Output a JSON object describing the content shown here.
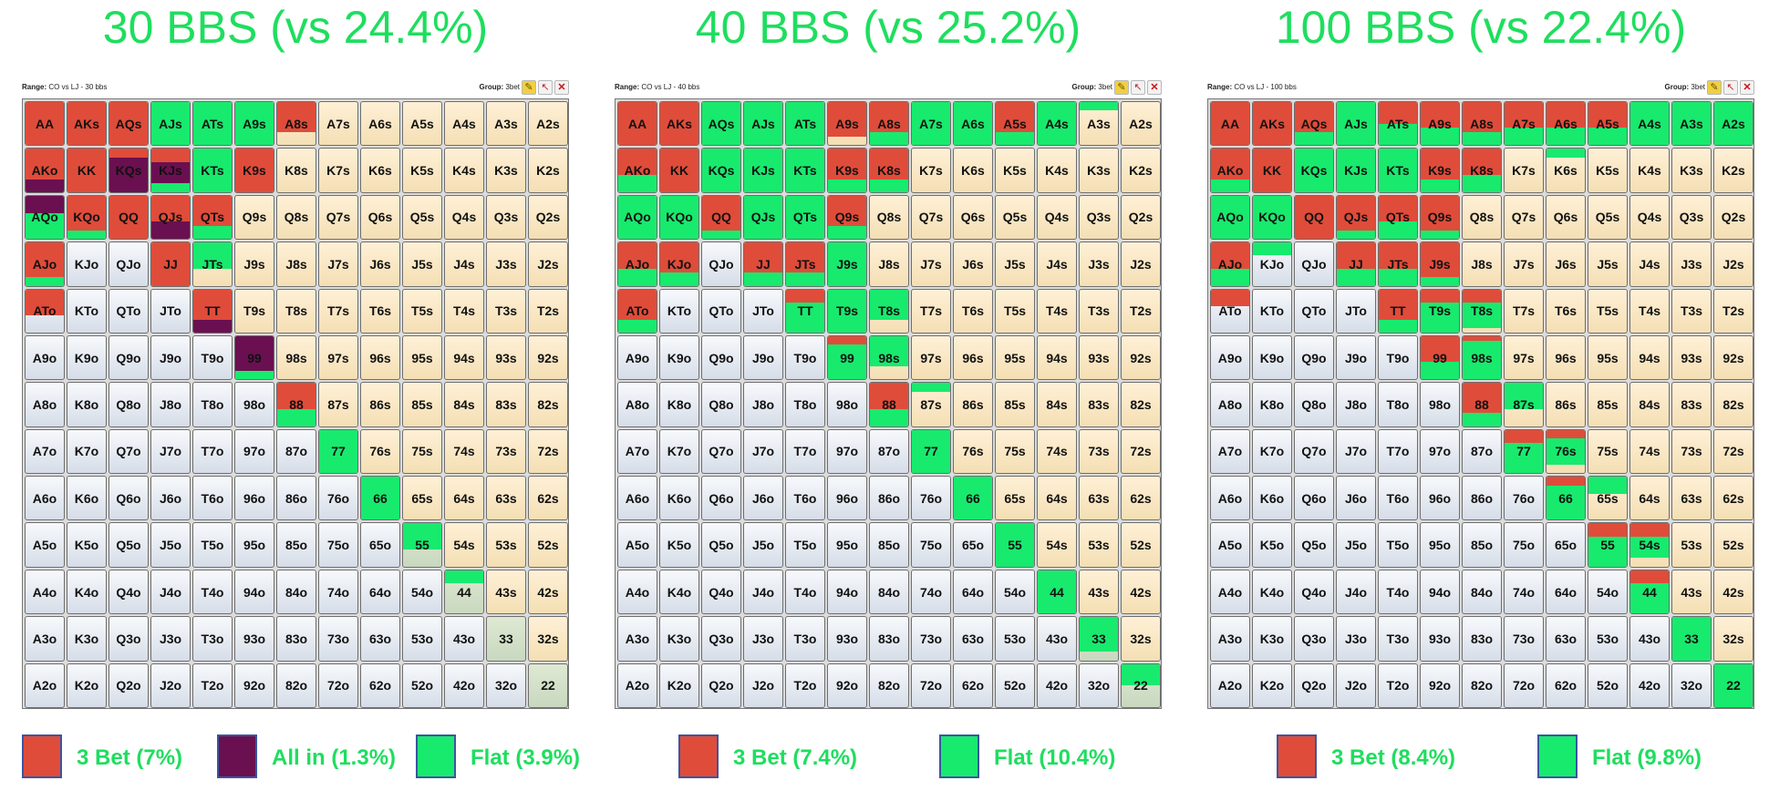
{
  "colors": {
    "title": "#1ede5e",
    "three_bet": "#e04c3a",
    "all_in": "#6a1050",
    "flat": "#18ea6e",
    "suited_bg": "#f4dfb4",
    "offsuit_bg": "#dde3ec",
    "pair_bg": "#c8d8bf"
  },
  "ranks": [
    "A",
    "K",
    "Q",
    "J",
    "T",
    "9",
    "8",
    "7",
    "6",
    "5",
    "4",
    "3",
    "2"
  ],
  "panels": [
    {
      "title": "30 BBS (vs 24.4%)",
      "window": {
        "range_key": "Range:",
        "range_value": "CO vs LJ - 30 bbs",
        "group_key": "Group:",
        "group_value": "3bet"
      },
      "legend": [
        {
          "label": "3 Bet (7%)",
          "color": "#e04c3a"
        },
        {
          "label": "All in (1.3%)",
          "color": "#6a1050"
        },
        {
          "label": "Flat (3.9%)",
          "color": "#18ea6e"
        }
      ],
      "actions": {
        "AA": [
          1,
          0,
          0
        ],
        "AKs": [
          1,
          0,
          0
        ],
        "AQs": [
          1,
          0,
          0
        ],
        "AJs": [
          0,
          0,
          1
        ],
        "ATs": [
          0,
          0,
          1
        ],
        "A9s": [
          0,
          0,
          1
        ],
        "A8s": [
          0.7,
          0,
          0
        ],
        "AKo": [
          0.7,
          0.3,
          0
        ],
        "KK": [
          1,
          0,
          0
        ],
        "KQs": [
          0.2,
          0.8,
          0
        ],
        "KJs": [
          0.3,
          0.5,
          0.2
        ],
        "KTs": [
          0,
          0,
          1
        ],
        "K9s": [
          1,
          0,
          0
        ],
        "AQo": [
          0,
          0.4,
          0.6
        ],
        "KQo": [
          0.8,
          0,
          0.2
        ],
        "QQ": [
          1,
          0,
          0
        ],
        "QJs": [
          0.6,
          0.4,
          0
        ],
        "QTs": [
          0.7,
          0,
          0.3
        ],
        "AJo": [
          0.8,
          0,
          0.2
        ],
        "JJ": [
          1,
          0,
          0
        ],
        "JTs": [
          0,
          0,
          0.6
        ],
        "ATo": [
          0.6,
          0,
          0
        ],
        "TT": [
          0.7,
          0.3,
          0
        ],
        "99": [
          0,
          0.8,
          0.2
        ],
        "88": [
          0.6,
          0,
          0.4
        ],
        "77": [
          0,
          0,
          1
        ],
        "66": [
          0,
          0,
          1
        ],
        "55": [
          0,
          0,
          0.6
        ],
        "44": [
          0,
          0,
          0.3
        ]
      }
    },
    {
      "title": "40 BBS (vs 25.2%)",
      "window": {
        "range_key": "Range:",
        "range_value": "CO vs LJ - 40 bbs",
        "group_key": "Group:",
        "group_value": "3bet"
      },
      "legend": [
        {
          "label": "3 Bet (7.4%)",
          "color": "#e04c3a"
        },
        {
          "label": "Flat (10.4%)",
          "color": "#18ea6e"
        }
      ],
      "actions": {
        "AA": [
          1,
          0,
          0
        ],
        "AKs": [
          1,
          0,
          0
        ],
        "AQs": [
          0,
          0,
          1
        ],
        "AJs": [
          0,
          0,
          1
        ],
        "ATs": [
          0,
          0,
          1
        ],
        "A9s": [
          0.8,
          0,
          0
        ],
        "A8s": [
          0.7,
          0,
          0.3
        ],
        "A7s": [
          0,
          0,
          1
        ],
        "A6s": [
          0,
          0,
          1
        ],
        "A5s": [
          0.7,
          0,
          0.3
        ],
        "A4s": [
          0,
          0,
          1
        ],
        "A3s": [
          0,
          0,
          0.2
        ],
        "AKo": [
          0.6,
          0,
          0.4
        ],
        "KK": [
          1,
          0,
          0
        ],
        "KQs": [
          0,
          0,
          1
        ],
        "KJs": [
          0,
          0,
          1
        ],
        "KTs": [
          0,
          0,
          1
        ],
        "K9s": [
          0.7,
          0,
          0.3
        ],
        "K8s": [
          0.7,
          0,
          0.3
        ],
        "AQo": [
          0,
          0,
          1
        ],
        "KQo": [
          0,
          0,
          1
        ],
        "QQ": [
          0.8,
          0,
          0.2
        ],
        "QJs": [
          0,
          0,
          1
        ],
        "QTs": [
          0,
          0,
          1
        ],
        "Q9s": [
          0.7,
          0,
          0.3
        ],
        "AJo": [
          0.6,
          0,
          0.4
        ],
        "KJo": [
          0.7,
          0,
          0.3
        ],
        "JJ": [
          0.7,
          0,
          0.3
        ],
        "JTs": [
          0.7,
          0,
          0.3
        ],
        "J9s": [
          0,
          0,
          1
        ],
        "ATo": [
          0.7,
          0,
          0.3
        ],
        "TT": [
          0.3,
          0,
          0.7
        ],
        "T9s": [
          0,
          0,
          1
        ],
        "T8s": [
          0,
          0,
          0.7
        ],
        "99": [
          0.2,
          0,
          0.8
        ],
        "98s": [
          0,
          0,
          0.7
        ],
        "88": [
          0.6,
          0,
          0.4
        ],
        "87s": [
          0,
          0,
          0.2
        ],
        "77": [
          0,
          0,
          1
        ],
        "66": [
          0,
          0,
          1
        ],
        "55": [
          0,
          0,
          1
        ],
        "44": [
          0,
          0,
          1
        ],
        "33": [
          0,
          0,
          0.8
        ],
        "22": [
          0,
          0,
          0.5
        ]
      }
    },
    {
      "title": "100 BBS (vs 22.4%)",
      "window": {
        "range_key": "Range:",
        "range_value": "CO vs LJ - 100 bbs",
        "group_key": "Group:",
        "group_value": "3bet"
      },
      "legend": [
        {
          "label": "3 Bet (8.4%)",
          "color": "#e04c3a"
        },
        {
          "label": "Flat (9.8%)",
          "color": "#18ea6e"
        }
      ],
      "actions": {
        "AA": [
          1,
          0,
          0
        ],
        "AKs": [
          1,
          0,
          0
        ],
        "AQs": [
          0.7,
          0,
          0.3
        ],
        "AJs": [
          0,
          0,
          1
        ],
        "ATs": [
          0.5,
          0,
          0.5
        ],
        "A9s": [
          0.6,
          0,
          0.4
        ],
        "A8s": [
          0.7,
          0,
          0.3
        ],
        "A7s": [
          0.6,
          0,
          0.4
        ],
        "A6s": [
          0.6,
          0,
          0.4
        ],
        "A5s": [
          0.6,
          0,
          0.4
        ],
        "A4s": [
          0,
          0,
          1
        ],
        "A3s": [
          0,
          0,
          1
        ],
        "A2s": [
          0,
          0,
          1
        ],
        "AKo": [
          0.7,
          0,
          0.3
        ],
        "KK": [
          1,
          0,
          0
        ],
        "KQs": [
          0,
          0,
          1
        ],
        "KJs": [
          0,
          0,
          1
        ],
        "KTs": [
          0,
          0,
          1
        ],
        "K9s": [
          0.7,
          0,
          0.3
        ],
        "K8s": [
          0.6,
          0,
          0.4
        ],
        "K6s": [
          0,
          0,
          0.2
        ],
        "AQo": [
          0,
          0,
          1
        ],
        "KQo": [
          0,
          0,
          1
        ],
        "QQ": [
          1,
          0,
          0
        ],
        "QJs": [
          0.8,
          0,
          0.2
        ],
        "QTs": [
          0.6,
          0,
          0.4
        ],
        "Q9s": [
          0.8,
          0,
          0.2
        ],
        "AJo": [
          0.6,
          0,
          0.4
        ],
        "KJo": [
          0,
          0,
          0.3
        ],
        "JJ": [
          0.6,
          0,
          0.4
        ],
        "JTs": [
          0.6,
          0,
          0.4
        ],
        "J9s": [
          0.8,
          0,
          0.2
        ],
        "ATo": [
          0.4,
          0,
          0
        ],
        "TT": [
          0.7,
          0,
          0.3
        ],
        "T9s": [
          0.3,
          0,
          0.7
        ],
        "T8s": [
          0.3,
          0,
          0.6
        ],
        "99": [
          0.6,
          0,
          0.4
        ],
        "98s": [
          0.1,
          0,
          0.9
        ],
        "88": [
          0.7,
          0,
          0.3
        ],
        "87s": [
          0,
          0,
          0.6
        ],
        "77": [
          0.3,
          0,
          0.7
        ],
        "76s": [
          0.2,
          0,
          0.6
        ],
        "66": [
          0.2,
          0,
          0.8
        ],
        "65s": [
          0,
          0,
          0.4
        ],
        "55": [
          0.3,
          0,
          0.7
        ],
        "54s": [
          0.3,
          0,
          0.5
        ],
        "44": [
          0.3,
          0,
          0.7
        ],
        "33": [
          0,
          0,
          1
        ],
        "22": [
          0,
          0,
          1
        ]
      }
    }
  ]
}
